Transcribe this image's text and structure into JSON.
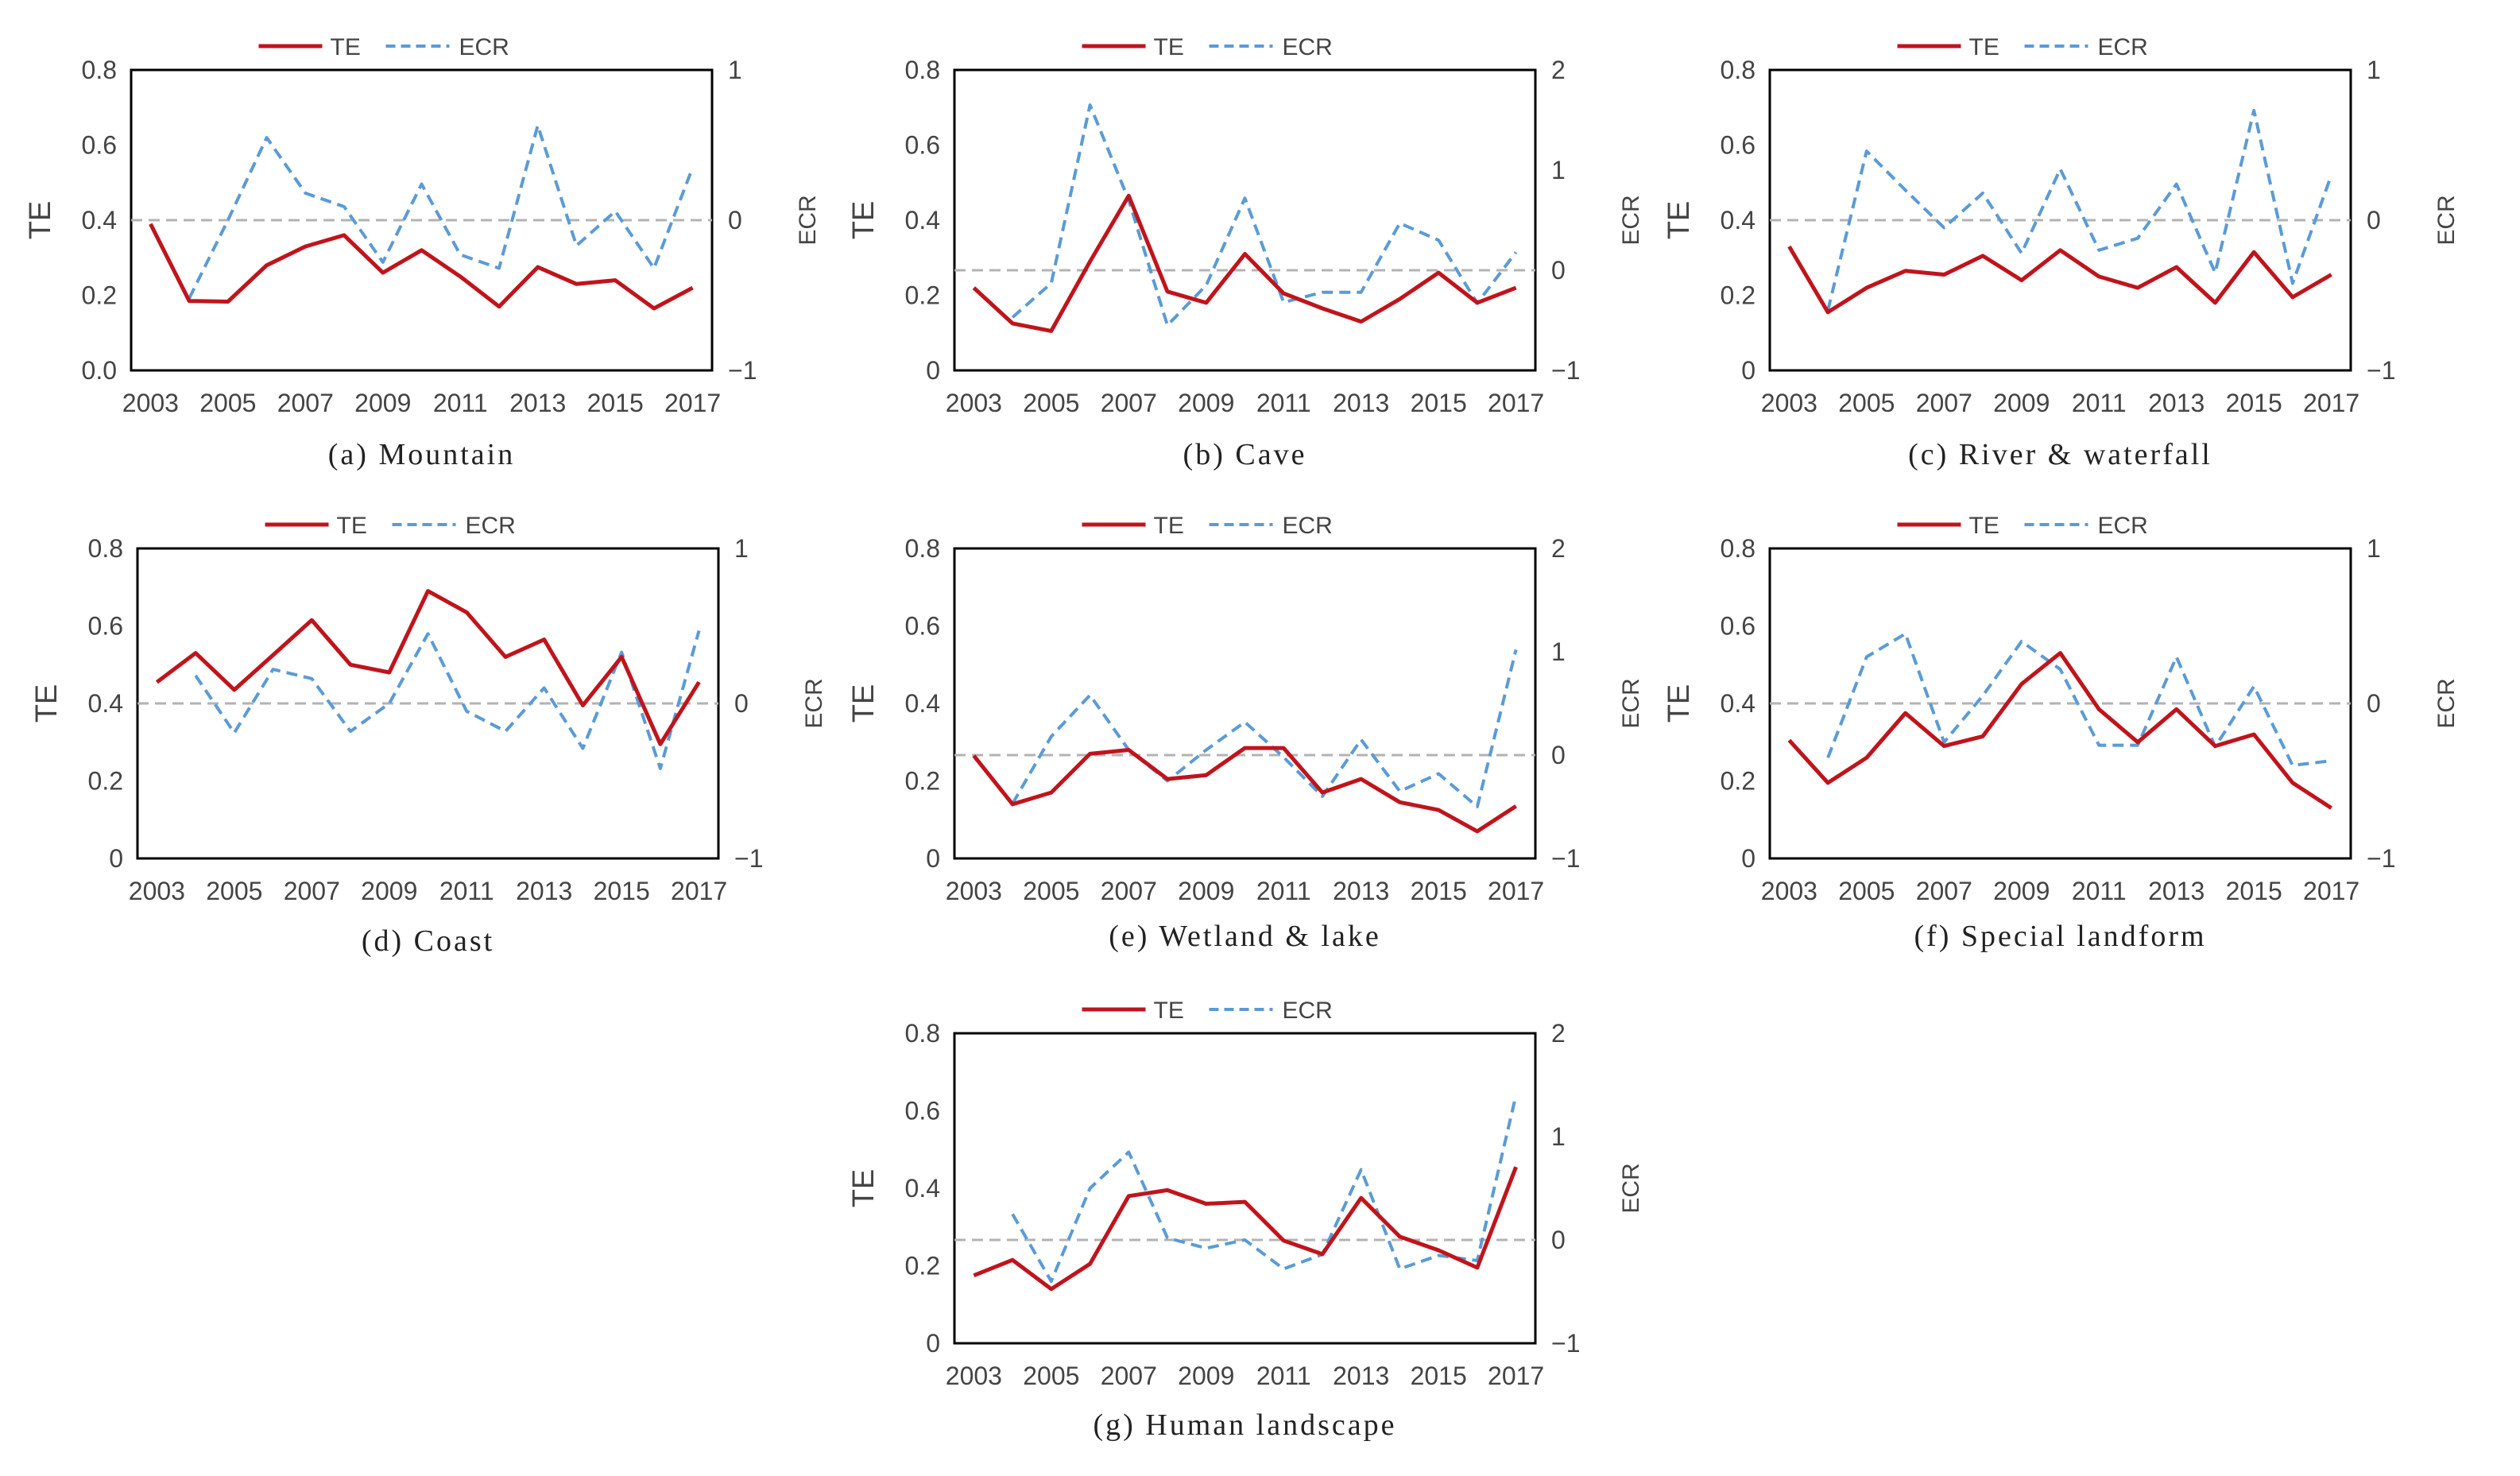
{
  "figure": {
    "legend_te": "TE",
    "legend_ecr": "ECR",
    "colors": {
      "te": "#c0141c",
      "ecr": "#5b9bd5",
      "ref": "#b3b3b3",
      "axis": "#000000",
      "text": "#444444"
    }
  },
  "chart_data": [
    {
      "id": "a",
      "type": "line",
      "caption": "(a) Mountain",
      "ylabel": "TE",
      "y2label": "ECR",
      "ylim": [
        0,
        0.8
      ],
      "y2lim": [
        -1,
        1
      ],
      "yticks": [
        "0.0",
        "0.2",
        "0.4",
        "0.6",
        "0.8"
      ],
      "y2ticks": [
        "−1",
        "0",
        "1"
      ],
      "xticks": [
        "2003",
        "2005",
        "2007",
        "2009",
        "2011",
        "2013",
        "2015",
        "2017"
      ],
      "x": [
        2003,
        2004,
        2005,
        2006,
        2007,
        2008,
        2009,
        2010,
        2011,
        2012,
        2013,
        2014,
        2015,
        2016,
        2017
      ],
      "te": [
        0.39,
        0.185,
        0.183,
        0.28,
        0.33,
        0.36,
        0.26,
        0.32,
        0.25,
        0.17,
        0.275,
        0.23,
        0.24,
        0.165,
        0.22
      ],
      "ecr": [
        null,
        -0.52,
        0.0,
        0.55,
        0.18,
        0.09,
        -0.28,
        0.24,
        -0.23,
        -0.32,
        0.63,
        -0.17,
        0.06,
        -0.32,
        0.35
      ]
    },
    {
      "id": "b",
      "type": "line",
      "caption": "(b) Cave",
      "ylabel": "TE",
      "y2label": "ECR",
      "ylim": [
        0,
        0.8
      ],
      "y2lim": [
        -1,
        2
      ],
      "yticks": [
        "0",
        "0.2",
        "0.4",
        "0.6",
        "0.8"
      ],
      "y2ticks": [
        "−1",
        "0",
        "1",
        "2"
      ],
      "xticks": [
        "2003",
        "2005",
        "2007",
        "2009",
        "2011",
        "2013",
        "2015",
        "2017"
      ],
      "x": [
        2003,
        2004,
        2005,
        2006,
        2007,
        2008,
        2009,
        2010,
        2011,
        2012,
        2013,
        2014,
        2015,
        2016,
        2017
      ],
      "te": [
        0.22,
        0.125,
        0.105,
        0.29,
        0.465,
        0.21,
        0.18,
        0.31,
        0.205,
        0.165,
        0.13,
        0.19,
        0.26,
        0.18,
        0.22
      ],
      "ecr": [
        null,
        -0.47,
        -0.13,
        1.65,
        0.7,
        -0.55,
        -0.15,
        0.72,
        -0.32,
        -0.22,
        -0.22,
        0.47,
        0.3,
        -0.33,
        0.18
      ]
    },
    {
      "id": "c",
      "type": "line",
      "caption": "(c) River & waterfall",
      "ylabel": "TE",
      "y2label": "ECR",
      "ylim": [
        0,
        0.8
      ],
      "y2lim": [
        -1,
        1
      ],
      "yticks": [
        "0",
        "0.2",
        "0.4",
        "0.6",
        "0.8"
      ],
      "y2ticks": [
        "−1",
        "0",
        "1"
      ],
      "xticks": [
        "2003",
        "2005",
        "2007",
        "2009",
        "2011",
        "2013",
        "2015",
        "2017"
      ],
      "x": [
        2003,
        2004,
        2005,
        2006,
        2007,
        2008,
        2009,
        2010,
        2011,
        2012,
        2013,
        2014,
        2015,
        2016,
        2017
      ],
      "te": [
        0.33,
        0.155,
        0.22,
        0.265,
        0.255,
        0.305,
        0.24,
        0.32,
        0.25,
        0.22,
        0.275,
        0.18,
        0.315,
        0.195,
        0.255
      ],
      "ecr": [
        null,
        -0.6,
        0.46,
        0.2,
        -0.05,
        0.18,
        -0.22,
        0.34,
        -0.2,
        -0.12,
        0.24,
        -0.35,
        0.73,
        -0.42,
        0.3
      ]
    },
    {
      "id": "d",
      "type": "line",
      "caption": "(d) Coast",
      "ylabel": "TE",
      "y2label": "ECR",
      "ylim": [
        0,
        0.8
      ],
      "y2lim": [
        -1,
        1
      ],
      "yticks": [
        "0",
        "0.2",
        "0.4",
        "0.6",
        "0.8"
      ],
      "y2ticks": [
        "−1",
        "0",
        "1"
      ],
      "xticks": [
        "2003",
        "2005",
        "2007",
        "2009",
        "2011",
        "2013",
        "2015",
        "2017"
      ],
      "x": [
        2003,
        2004,
        2005,
        2006,
        2007,
        2008,
        2009,
        2010,
        2011,
        2012,
        2013,
        2014,
        2015,
        2016,
        2017
      ],
      "te": [
        0.455,
        0.53,
        0.435,
        0.525,
        0.615,
        0.5,
        0.48,
        0.69,
        0.635,
        0.52,
        0.565,
        0.395,
        0.52,
        0.295,
        0.455
      ],
      "ecr": [
        null,
        0.18,
        -0.19,
        0.22,
        0.16,
        -0.18,
        0.0,
        0.45,
        -0.05,
        -0.18,
        0.1,
        -0.29,
        0.33,
        -0.42,
        0.47
      ]
    },
    {
      "id": "e",
      "type": "line",
      "caption": "(e) Wetland & lake",
      "ylabel": "TE",
      "y2label": "ECR",
      "ylim": [
        0,
        0.8
      ],
      "y2lim": [
        -1,
        2
      ],
      "yticks": [
        "0",
        "0.2",
        "0.4",
        "0.6",
        "0.8"
      ],
      "y2ticks": [
        "−1",
        "0",
        "1",
        "2"
      ],
      "xticks": [
        "2003",
        "2005",
        "2007",
        "2009",
        "2011",
        "2013",
        "2015",
        "2017"
      ],
      "x": [
        2003,
        2004,
        2005,
        2006,
        2007,
        2008,
        2009,
        2010,
        2011,
        2012,
        2013,
        2014,
        2015,
        2016,
        2017
      ],
      "te": [
        0.265,
        0.14,
        0.17,
        0.27,
        0.28,
        0.205,
        0.215,
        0.285,
        0.285,
        0.17,
        0.205,
        0.145,
        0.125,
        0.07,
        0.135
      ],
      "ecr": [
        null,
        -0.47,
        0.18,
        0.58,
        0.05,
        -0.25,
        0.05,
        0.32,
        -0.02,
        -0.4,
        0.15,
        -0.35,
        -0.18,
        -0.5,
        1.02
      ]
    },
    {
      "id": "f",
      "type": "line",
      "caption": "(f) Special landform",
      "ylabel": "TE",
      "y2label": "ECR",
      "ylim": [
        0,
        0.8
      ],
      "y2lim": [
        -1,
        1
      ],
      "yticks": [
        "0",
        "0.2",
        "0.4",
        "0.6",
        "0.8"
      ],
      "y2ticks": [
        "−1",
        "0",
        "1"
      ],
      "xticks": [
        "2003",
        "2005",
        "2007",
        "2009",
        "2011",
        "2013",
        "2015",
        "2017"
      ],
      "x": [
        2003,
        2004,
        2005,
        2006,
        2007,
        2008,
        2009,
        2010,
        2011,
        2012,
        2013,
        2014,
        2015,
        2016,
        2017
      ],
      "te": [
        0.305,
        0.195,
        0.26,
        0.375,
        0.29,
        0.315,
        0.45,
        0.53,
        0.385,
        0.3,
        0.385,
        0.29,
        0.32,
        0.195,
        0.13
      ],
      "ecr": [
        null,
        -0.35,
        0.3,
        0.45,
        -0.25,
        0.05,
        0.4,
        0.22,
        -0.27,
        -0.27,
        0.3,
        -0.28,
        0.11,
        -0.4,
        -0.37
      ]
    },
    {
      "id": "g",
      "type": "line",
      "caption": "(g) Human landscape",
      "ylabel": "TE",
      "y2label": "ECR",
      "ylim": [
        0,
        0.8
      ],
      "y2lim": [
        -1,
        2
      ],
      "yticks": [
        "0",
        "0.2",
        "0.4",
        "0.6",
        "0.8"
      ],
      "y2ticks": [
        "−1",
        "0",
        "1",
        "2"
      ],
      "xticks": [
        "2003",
        "2005",
        "2007",
        "2009",
        "2011",
        "2013",
        "2015",
        "2017"
      ],
      "x": [
        2003,
        2004,
        2005,
        2006,
        2007,
        2008,
        2009,
        2010,
        2011,
        2012,
        2013,
        2014,
        2015,
        2016,
        2017
      ],
      "te": [
        0.175,
        0.215,
        0.14,
        0.205,
        0.38,
        0.395,
        0.36,
        0.365,
        0.265,
        0.23,
        0.375,
        0.275,
        0.24,
        0.195,
        0.455
      ],
      "ecr": [
        null,
        0.25,
        -0.4,
        0.5,
        0.85,
        0.02,
        -0.08,
        0.0,
        -0.28,
        -0.14,
        0.68,
        -0.28,
        -0.15,
        -0.2,
        1.4
      ]
    }
  ]
}
